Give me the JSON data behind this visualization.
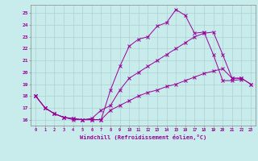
{
  "xlabel": "Windchill (Refroidissement éolien,°C)",
  "bg_color": "#c8ecec",
  "grid_color": "#b0d0d0",
  "line_color": "#990099",
  "xlim": [
    -0.5,
    23.5
  ],
  "ylim": [
    15.5,
    25.7
  ],
  "yticks": [
    16,
    17,
    18,
    19,
    20,
    21,
    22,
    23,
    24,
    25
  ],
  "xticks": [
    0,
    1,
    2,
    3,
    4,
    5,
    6,
    7,
    8,
    9,
    10,
    11,
    12,
    13,
    14,
    15,
    16,
    17,
    18,
    19,
    20,
    21,
    22,
    23
  ],
  "line1_x": [
    0,
    1,
    2,
    3,
    4,
    5,
    6,
    7,
    8,
    9,
    10,
    11,
    12,
    13,
    14,
    15,
    16,
    17,
    18,
    19,
    20,
    21,
    22
  ],
  "line1_y": [
    18.0,
    17.0,
    16.5,
    16.2,
    16.0,
    16.0,
    16.0,
    16.0,
    18.5,
    20.5,
    22.2,
    22.8,
    23.0,
    23.9,
    24.2,
    25.3,
    24.8,
    23.3,
    23.4,
    21.5,
    19.3,
    19.3,
    19.4
  ],
  "line2_x": [
    0,
    1,
    2,
    3,
    4,
    5,
    6,
    7,
    8,
    9,
    10,
    11,
    12,
    13,
    14,
    15,
    16,
    17,
    18,
    19,
    20,
    21,
    22,
    23
  ],
  "line2_y": [
    18.0,
    17.0,
    16.5,
    16.2,
    16.1,
    16.0,
    16.1,
    16.8,
    17.2,
    18.5,
    19.5,
    20.0,
    20.5,
    21.0,
    21.5,
    22.0,
    22.5,
    23.0,
    23.3,
    23.4,
    21.5,
    19.5,
    19.5,
    19.0
  ],
  "line3_x": [
    0,
    1,
    2,
    3,
    4,
    5,
    6,
    7,
    8,
    9,
    10,
    11,
    12,
    13,
    14,
    15,
    16,
    17,
    18,
    19,
    20,
    21,
    22,
    23
  ],
  "line3_y": [
    18.0,
    17.0,
    16.5,
    16.2,
    16.1,
    16.0,
    16.0,
    16.0,
    16.8,
    17.2,
    17.6,
    18.0,
    18.3,
    18.5,
    18.8,
    19.0,
    19.3,
    19.6,
    19.9,
    20.1,
    20.3,
    19.5,
    19.5,
    19.0
  ]
}
